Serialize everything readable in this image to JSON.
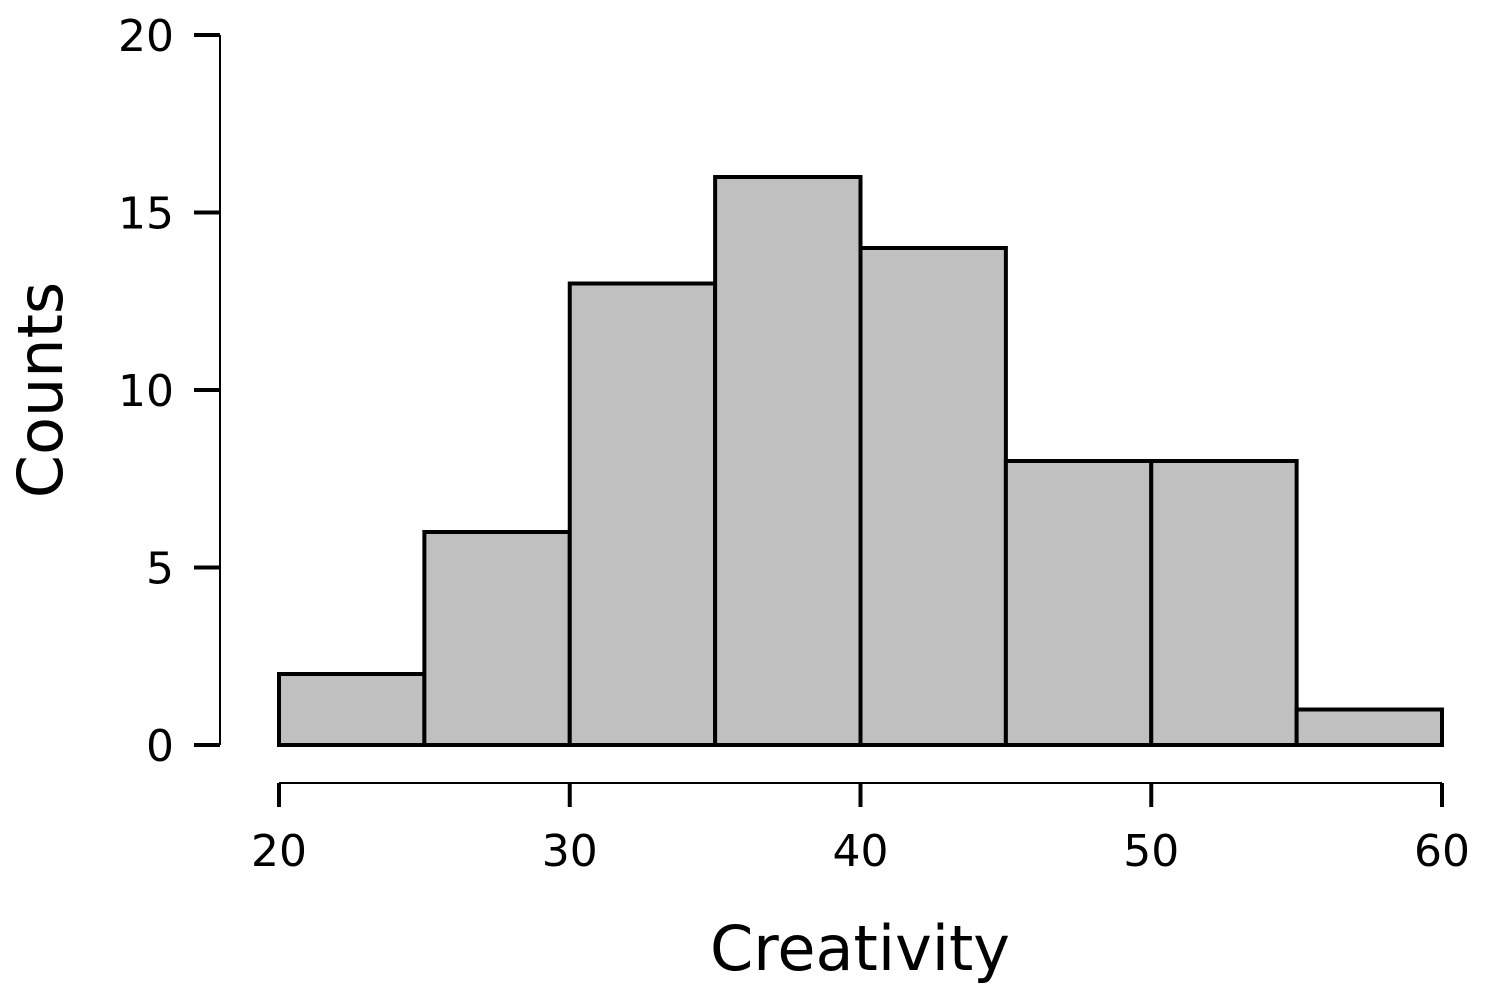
{
  "chart_data": {
    "type": "bar",
    "subtype": "histogram",
    "title": "",
    "xlabel": "Creativity",
    "ylabel": "Counts",
    "bins": [
      {
        "start": 20,
        "end": 25,
        "count": 2
      },
      {
        "start": 25,
        "end": 30,
        "count": 6
      },
      {
        "start": 30,
        "end": 35,
        "count": 13
      },
      {
        "start": 35,
        "end": 40,
        "count": 16
      },
      {
        "start": 40,
        "end": 45,
        "count": 14
      },
      {
        "start": 45,
        "end": 50,
        "count": 8
      },
      {
        "start": 50,
        "end": 55,
        "count": 8
      },
      {
        "start": 55,
        "end": 60,
        "count": 1
      }
    ],
    "xlim": [
      20,
      60
    ],
    "ylim": [
      0,
      20
    ],
    "x_ticks": [
      "20",
      "30",
      "40",
      "50",
      "60"
    ],
    "y_ticks": [
      "0",
      "5",
      "10",
      "15",
      "20"
    ],
    "bar_color": "#c0c0c0",
    "edge_color": "#000000",
    "grid": false,
    "legend": "none"
  }
}
